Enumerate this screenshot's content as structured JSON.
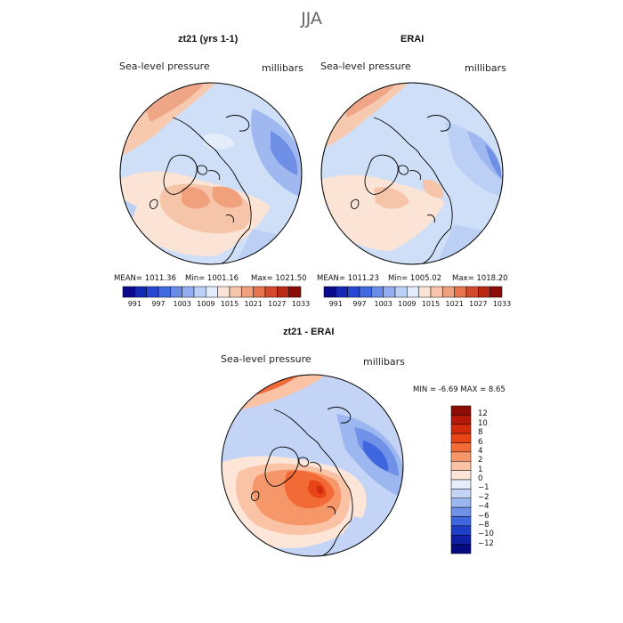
{
  "season": "JJA",
  "panels": [
    {
      "title": "zt21 (yrs 1-1)",
      "variable": "Sea-level pressure",
      "units": "millibars",
      "stats": {
        "mean": "MEAN= 1011.36",
        "min": "Min= 1001.16",
        "max": "Max= 1021.50"
      }
    },
    {
      "title": "ERAI",
      "variable": "Sea-level pressure",
      "units": "millibars",
      "stats": {
        "mean": "MEAN= 1011.23",
        "min": "Min= 1005.02",
        "max": "Max= 1018.20"
      }
    }
  ],
  "colorbar_abs": {
    "labels": [
      "991",
      "997",
      "1003",
      "1009",
      "1015",
      "1021",
      "1027",
      "1033"
    ],
    "colors": [
      "#0a0a8a",
      "#1428b4",
      "#2846d2",
      "#4169e1",
      "#6a8ce8",
      "#94adf0",
      "#bcd0f5",
      "#e2ecfb",
      "#fbe4d6",
      "#f6c4a8",
      "#f0a07a",
      "#e6754f",
      "#d44a2c",
      "#b82a14",
      "#8c0c06"
    ]
  },
  "diff_panel": {
    "title": "zt21 - ERAI",
    "variable": "Sea-level pressure",
    "units": "millibars",
    "stats": "MIN =   -6.69 MAX =    8.65"
  },
  "colorbar_diff": {
    "labels": [
      "12",
      "10",
      "8",
      "6",
      "4",
      "2",
      "1",
      "0",
      "−1",
      "−2",
      "−4",
      "−6",
      "−8",
      "−10",
      "−12"
    ],
    "colors": [
      "#8c0c06",
      "#b41808",
      "#d42a0c",
      "#e84416",
      "#f26a36",
      "#f6976a",
      "#fac3a6",
      "#fde6d8",
      "#e6eefb",
      "#c4d4f6",
      "#9cb6f0",
      "#6f92e8",
      "#3e66df",
      "#1f3fc8",
      "#0e1fa6",
      "#060a80"
    ]
  }
}
